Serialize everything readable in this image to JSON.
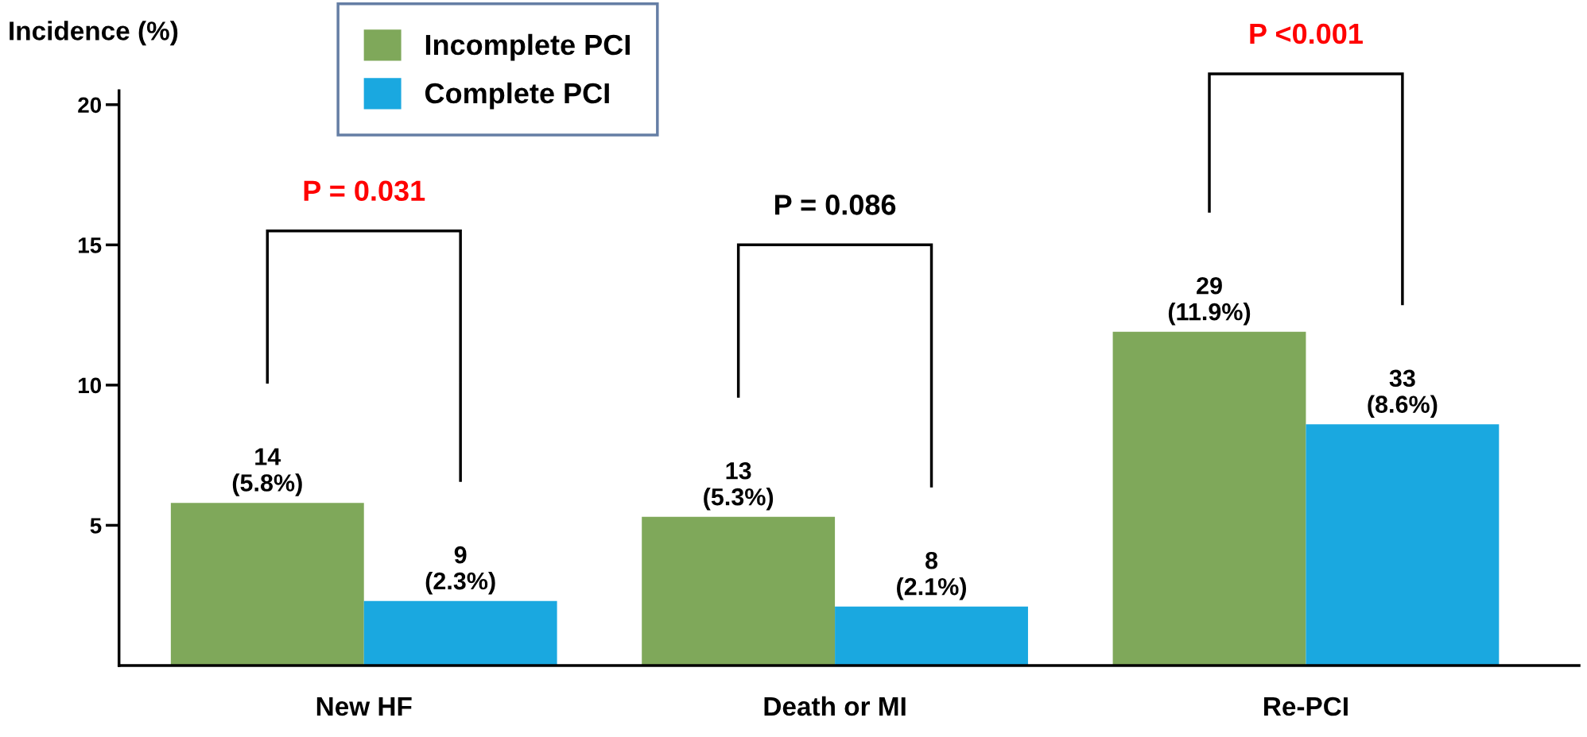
{
  "chart_data": {
    "type": "bar",
    "ylabel": "Incidence (%)",
    "categories": [
      "New HF",
      "Death or MI",
      "Re-PCI"
    ],
    "series": [
      {
        "name": "Incomplete PCI",
        "color": "#7fa85a",
        "values": [
          5.8,
          5.3,
          11.9
        ],
        "value_labels": [
          "14\n(5.8%)",
          "13\n(5.3%)",
          "29\n(11.9%)"
        ]
      },
      {
        "name": "Complete PCI",
        "color": "#1aa8e0",
        "values": [
          2.3,
          2.1,
          8.6
        ],
        "value_labels": [
          "9\n(2.3%)",
          "8\n(2.1%)",
          "33\n(8.6%)"
        ]
      }
    ],
    "ylim": [
      0,
      20.5
    ],
    "yticks": [
      5,
      10,
      15,
      20
    ],
    "grid": false,
    "legend": "top left",
    "annotations": [
      "P = 0.031",
      "P = 0.086",
      "P <0.001"
    ]
  }
}
